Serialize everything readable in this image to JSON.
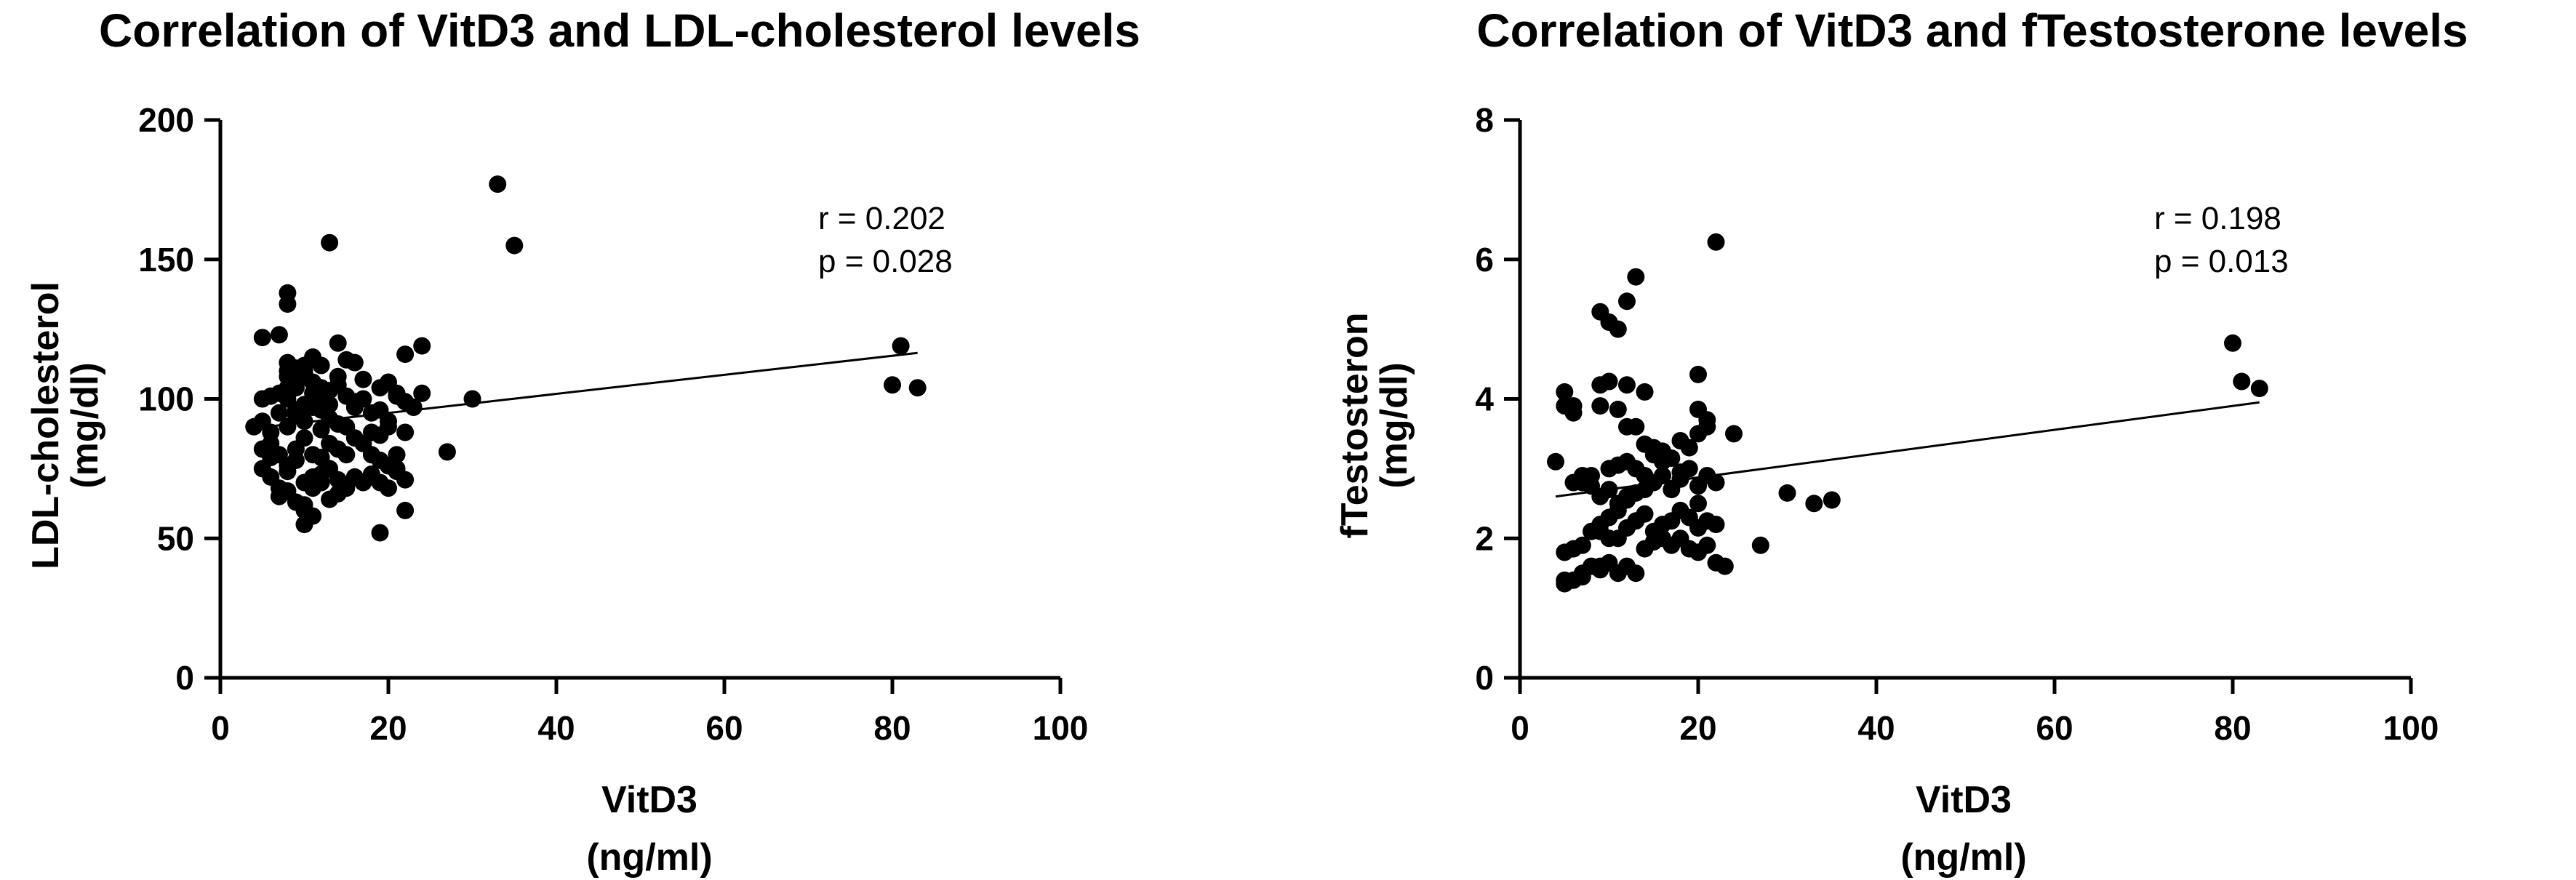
{
  "chart_data": [
    {
      "type": "scatter",
      "title": "Correlation of VitD3 and LDL-cholesterol levels",
      "xlabel": [
        "VitD3",
        "(ng/ml)"
      ],
      "ylabel": [
        "LDL-cholesterol",
        "(mg/dl)"
      ],
      "xlim": [
        0,
        100
      ],
      "ylim": [
        0,
        200
      ],
      "xticks": [
        0,
        20,
        40,
        60,
        80,
        100
      ],
      "yticks": [
        0,
        50,
        100,
        150,
        200
      ],
      "grid": false,
      "stats": [
        "r =  0.202",
        "p = 0.028"
      ],
      "fit_line": {
        "x": [
          4,
          83
        ],
        "y": [
          89.5,
          116.5
        ]
      },
      "points": {
        "x": [
          4,
          5,
          5,
          6,
          5,
          6,
          7,
          7,
          8,
          8,
          8,
          9,
          9,
          10,
          10,
          11,
          12,
          12,
          13,
          14,
          5,
          6,
          7,
          8,
          9,
          10,
          11,
          12,
          13,
          14,
          15,
          16,
          17,
          18,
          19,
          20,
          21,
          22,
          6,
          7,
          8,
          9,
          10,
          11,
          12,
          13,
          14,
          15,
          16,
          17,
          18,
          19,
          20,
          21,
          5,
          6,
          7,
          8,
          9,
          10,
          11,
          12,
          13,
          14,
          15,
          16,
          17,
          18,
          19,
          20,
          21,
          22,
          23,
          24,
          7,
          8,
          9,
          10,
          11,
          12,
          13,
          14,
          15,
          16,
          18,
          19,
          20,
          21,
          22,
          8,
          9,
          10,
          11,
          12,
          13,
          14,
          15,
          16,
          17,
          19,
          20,
          21,
          22,
          24,
          8,
          9,
          10,
          11,
          12,
          14,
          15,
          16,
          10,
          11,
          10,
          8,
          8,
          13,
          19,
          22,
          27,
          30,
          33,
          35,
          80,
          81,
          83
        ],
        "y": [
          90,
          122,
          100,
          101,
          75,
          79,
          123,
          102,
          113,
          108,
          104,
          96,
          105,
          112,
          110,
          106,
          100,
          104,
          98,
          120,
          82,
          84,
          80,
          76,
          82,
          86,
          80,
          79,
          84,
          82,
          80,
          86,
          84,
          88,
          87,
          90,
          80,
          88,
          72,
          68,
          74,
          78,
          70,
          72,
          73,
          75,
          71,
          68,
          72,
          70,
          73,
          70,
          68,
          75,
          92,
          88,
          95,
          90,
          94,
          92,
          97,
          89,
          93,
          91,
          90,
          97,
          100,
          95,
          96,
          92,
          101,
          99,
          97,
          102,
          65,
          67,
          63,
          62,
          68,
          70,
          64,
          66,
          69,
          72,
          80,
          78,
          76,
          74,
          71,
          100,
          104,
          98,
          102,
          96,
          103,
          105,
          101,
          99,
          107,
          104,
          106,
          102,
          116,
          119,
          110,
          111,
          109,
          115,
          112,
          108,
          114,
          113,
          60,
          58,
          55,
          138,
          134,
          156,
          52,
          60,
          81,
          100,
          177,
          155,
          105,
          119,
          104
        ]
      }
    },
    {
      "type": "scatter",
      "title": "Correlation of VitD3 and fTestosterone levels",
      "xlabel": [
        "VitD3",
        "(ng/ml)"
      ],
      "ylabel": [
        "fTestosteron",
        "(mg/dl)"
      ],
      "xlim": [
        0,
        100
      ],
      "ylim": [
        0,
        8
      ],
      "xticks": [
        0,
        20,
        40,
        60,
        80,
        100
      ],
      "yticks": [
        0,
        2,
        4,
        6,
        8
      ],
      "grid": false,
      "stats": [
        "r =  0.198",
        "p = 0.013"
      ],
      "fit_line": {
        "x": [
          4,
          83
        ],
        "y": [
          2.6,
          3.95
        ]
      },
      "points": {
        "x": [
          4,
          5,
          5,
          6,
          6,
          7,
          8,
          9,
          9,
          10,
          10,
          11,
          12,
          12,
          13,
          14,
          5,
          6,
          7,
          8,
          9,
          10,
          11,
          12,
          13,
          14,
          15,
          16,
          17,
          18,
          19,
          20,
          21,
          6,
          7,
          8,
          9,
          10,
          11,
          12,
          13,
          14,
          15,
          16,
          17,
          18,
          19,
          20,
          21,
          22,
          5,
          6,
          7,
          8,
          9,
          10,
          11,
          12,
          13,
          14,
          15,
          16,
          17,
          18,
          19,
          20,
          21,
          22,
          9,
          10,
          11,
          12,
          13,
          14,
          15,
          16,
          18,
          19,
          20,
          21,
          5,
          7,
          9,
          11,
          12,
          13,
          14,
          15,
          16,
          17,
          18,
          20,
          9,
          10,
          12,
          20,
          11,
          22,
          21,
          20,
          22,
          23,
          24,
          27,
          30,
          33,
          35,
          80,
          81,
          83
        ],
        "y": [
          3.1,
          4.1,
          3.9,
          3.9,
          3.8,
          2.8,
          2.9,
          3.9,
          4.2,
          3.0,
          4.25,
          3.85,
          3.6,
          4.2,
          3.6,
          4.1,
          1.8,
          1.85,
          1.9,
          1.6,
          1.55,
          1.65,
          1.5,
          1.6,
          1.5,
          1.85,
          1.95,
          2.0,
          1.9,
          2.0,
          1.85,
          1.8,
          1.9,
          2.8,
          2.9,
          2.75,
          2.6,
          2.7,
          2.5,
          2.55,
          2.65,
          2.7,
          2.8,
          2.9,
          2.7,
          2.85,
          3.0,
          2.75,
          2.9,
          2.8,
          1.35,
          1.4,
          1.45,
          2.1,
          2.2,
          2.3,
          2.0,
          2.15,
          2.25,
          2.35,
          2.1,
          2.2,
          2.25,
          2.4,
          2.3,
          2.15,
          2.25,
          2.2,
          5.25,
          5.1,
          5.0,
          5.4,
          5.75,
          3.35,
          3.3,
          3.25,
          3.4,
          3.3,
          3.5,
          3.6,
          1.4,
          1.5,
          1.6,
          3.05,
          3.1,
          3.0,
          2.9,
          3.2,
          3.1,
          3.15,
          2.95,
          4.35,
          2.1,
          2.0,
          2.6,
          2.5,
          2.4,
          6.25,
          3.7,
          3.85,
          1.65,
          1.6,
          3.5,
          1.9,
          2.65,
          2.5,
          2.55,
          4.8,
          4.25,
          4.15
        ]
      }
    }
  ]
}
